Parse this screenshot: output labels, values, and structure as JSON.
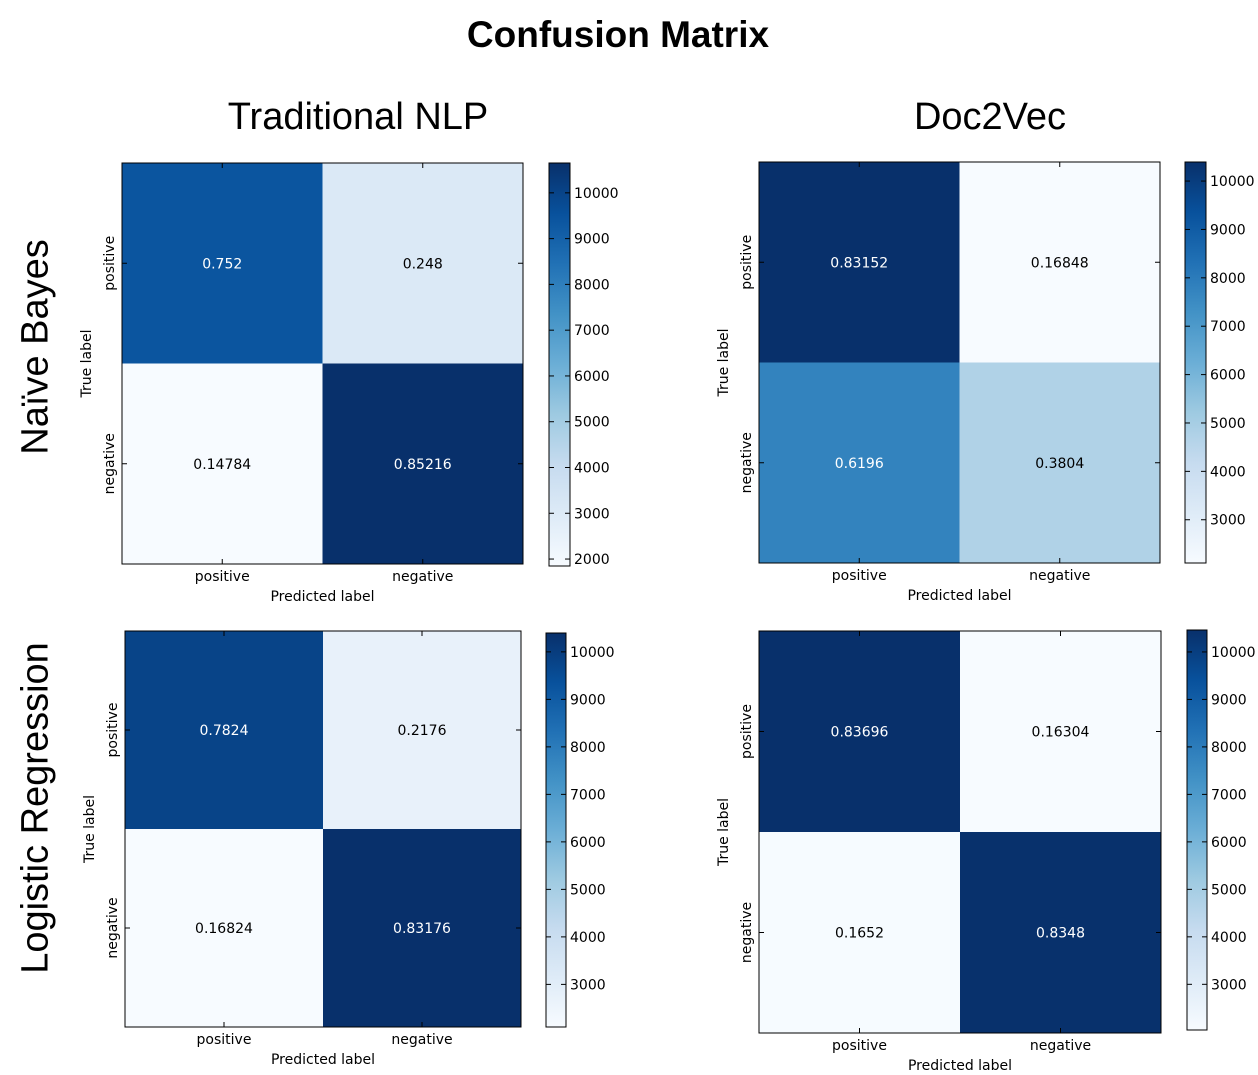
{
  "title": "Confusion Matrix",
  "columns": [
    "Traditional NLP",
    "Doc2Vec"
  ],
  "rows": [
    "Naïve Bayes",
    "Logistic Regression"
  ],
  "colormap": [
    "#f7fbff",
    "#deebf7",
    "#c6dbef",
    "#9ecae1",
    "#6baed6",
    "#4292c6",
    "#2171b5",
    "#08519c",
    "#08306b"
  ],
  "chart_data": [
    {
      "type": "heatmap",
      "categories": [
        "positive",
        "negative"
      ],
      "xlabel": "Predicted label",
      "ylabel": "True label",
      "values": [
        [
          0.752,
          0.248
        ],
        [
          0.14784,
          0.85216
        ]
      ],
      "value_labels": [
        [
          "0.752",
          "0.248"
        ],
        [
          "0.14784",
          "0.85216"
        ]
      ],
      "counts": [
        [
          9398,
          3102
        ],
        [
          1848,
          10652
        ]
      ],
      "colorbar": {
        "ticks": [
          "2000",
          "3000",
          "4000",
          "5000",
          "6000",
          "7000",
          "8000",
          "9000",
          "10000"
        ],
        "range": [
          1848,
          10652
        ]
      }
    },
    {
      "type": "heatmap",
      "categories": [
        "positive",
        "negative"
      ],
      "xlabel": "Predicted label",
      "ylabel": "True label",
      "values": [
        [
          0.83152,
          0.16848
        ],
        [
          0.6196,
          0.3804
        ]
      ],
      "value_labels": [
        [
          "0.83152",
          "0.16848"
        ],
        [
          "0.6196",
          "0.3804"
        ]
      ],
      "counts": [
        [
          10394,
          2106
        ],
        [
          7745,
          4755
        ]
      ],
      "colorbar": {
        "ticks": [
          "3000",
          "4000",
          "5000",
          "6000",
          "7000",
          "8000",
          "9000",
          "10000"
        ],
        "range": [
          2106,
          10394
        ]
      }
    },
    {
      "type": "heatmap",
      "categories": [
        "positive",
        "negative"
      ],
      "xlabel": "Predicted label",
      "ylabel": "True label",
      "values": [
        [
          0.7824,
          0.2176
        ],
        [
          0.16824,
          0.83176
        ]
      ],
      "value_labels": [
        [
          "0.7824",
          "0.2176"
        ],
        [
          "0.16824",
          "0.83176"
        ]
      ],
      "counts": [
        [
          9780,
          2720
        ],
        [
          2103,
          10397
        ]
      ],
      "colorbar": {
        "ticks": [
          "3000",
          "4000",
          "5000",
          "6000",
          "7000",
          "8000",
          "9000",
          "10000"
        ],
        "range": [
          2103,
          10397
        ]
      }
    },
    {
      "type": "heatmap",
      "categories": [
        "positive",
        "negative"
      ],
      "xlabel": "Predicted label",
      "ylabel": "True label",
      "values": [
        [
          0.83696,
          0.16304
        ],
        [
          0.1652,
          0.8348
        ]
      ],
      "value_labels": [
        [
          "0.83696",
          "0.16304"
        ],
        [
          "0.1652",
          "0.8348"
        ]
      ],
      "counts": [
        [
          10462,
          2038
        ],
        [
          2065,
          10435
        ]
      ],
      "colorbar": {
        "ticks": [
          "3000",
          "4000",
          "5000",
          "6000",
          "7000",
          "8000",
          "9000",
          "10000"
        ],
        "range": [
          2038,
          10462
        ]
      }
    }
  ]
}
